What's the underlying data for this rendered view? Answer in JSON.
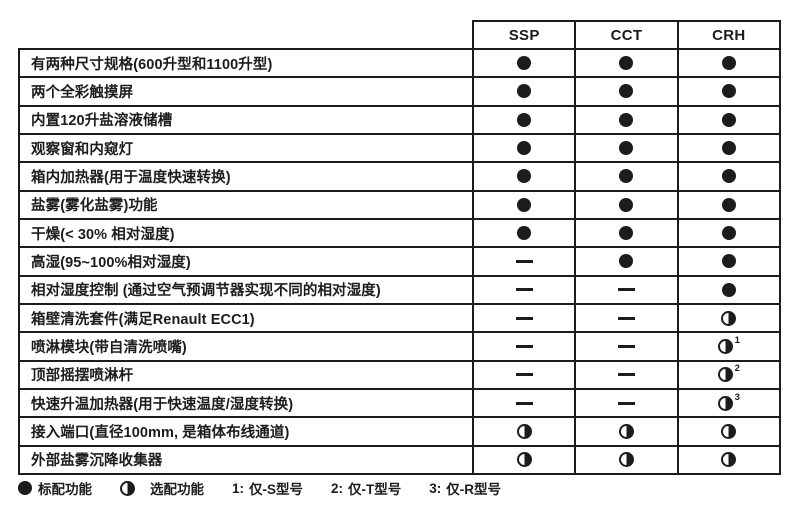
{
  "columns": [
    "SSP",
    "CCT",
    "CRH"
  ],
  "table": {
    "rows": [
      {
        "feature": "有两种尺寸规格(600升型和1100升型)",
        "cells": [
          "full",
          "full",
          "full"
        ]
      },
      {
        "feature": "两个全彩触摸屏",
        "cells": [
          "full",
          "full",
          "full"
        ]
      },
      {
        "feature": "内置120升盐溶液储槽",
        "cells": [
          "full",
          "full",
          "full"
        ]
      },
      {
        "feature": "观察窗和内窥灯",
        "cells": [
          "full",
          "full",
          "full"
        ]
      },
      {
        "feature": "箱内加热器(用于温度快速转换)",
        "cells": [
          "full",
          "full",
          "full"
        ]
      },
      {
        "feature": "盐雾(雾化盐雾)功能",
        "cells": [
          "full",
          "full",
          "full"
        ]
      },
      {
        "feature": "干燥(< 30% 相对湿度)",
        "cells": [
          "full",
          "full",
          "full"
        ]
      },
      {
        "feature": "高湿(95~100%相对湿度)",
        "cells": [
          "dash",
          "full",
          "full"
        ]
      },
      {
        "feature": "相对湿度控制 (通过空气预调节器实现不同的相对湿度)",
        "cells": [
          "dash",
          "dash",
          "full"
        ]
      },
      {
        "feature": "箱壁清洗套件(满足Renault ECC1)",
        "cells": [
          "dash",
          "dash",
          "half"
        ]
      },
      {
        "feature": "喷淋模块(带自清洗喷嘴)",
        "cells": [
          "dash",
          "dash",
          "half"
        ],
        "sups": [
          "",
          "",
          "1"
        ]
      },
      {
        "feature": "顶部摇摆喷淋杆",
        "cells": [
          "dash",
          "dash",
          "half"
        ],
        "sups": [
          "",
          "",
          "2"
        ]
      },
      {
        "feature": "快速升温加热器(用于快速温度/湿度转换)",
        "cells": [
          "dash",
          "dash",
          "half"
        ],
        "sups": [
          "",
          "",
          "3"
        ]
      },
      {
        "feature": "接入端口(直径100mm, 是箱体布线通道)",
        "cells": [
          "half",
          "half",
          "half"
        ]
      },
      {
        "feature": "外部盐雾沉降收集器",
        "cells": [
          "half",
          "half",
          "half"
        ]
      }
    ]
  },
  "legend": {
    "items": [
      {
        "symbol": "full",
        "label": "标配功能"
      },
      {
        "symbol": "half",
        "label": "选配功能"
      },
      {
        "prefix": "1:",
        "label": "仅-S型号"
      },
      {
        "prefix": "2:",
        "label": "仅-T型号"
      },
      {
        "prefix": "3:",
        "label": "仅-R型号"
      }
    ]
  },
  "colors": {
    "ink": "#1c1c1c",
    "background": "#ffffff"
  }
}
